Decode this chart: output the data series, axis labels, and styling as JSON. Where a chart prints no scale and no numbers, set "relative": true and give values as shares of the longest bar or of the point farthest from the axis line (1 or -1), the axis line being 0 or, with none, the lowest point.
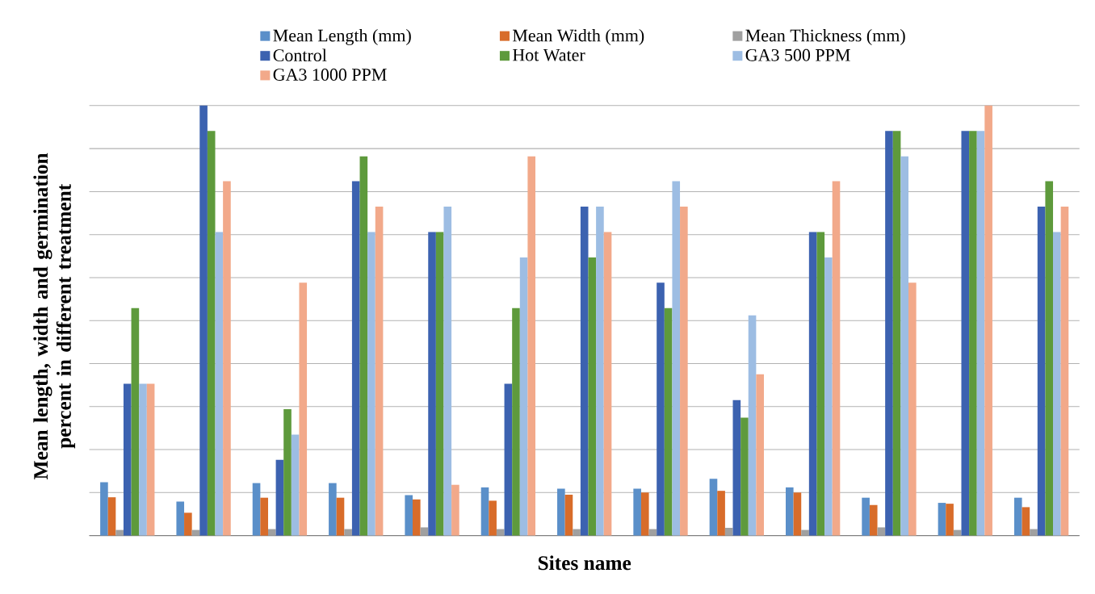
{
  "chart_data": {
    "type": "bar",
    "relative": true,
    "xlabel": "Sites name",
    "ylabel": "Mean length, width and germination percent in different treatment",
    "categories": [
      null,
      null,
      null,
      null,
      null,
      null,
      null,
      null,
      null,
      null,
      null,
      null,
      null
    ],
    "series": [
      {
        "name": "Mean Length (mm)",
        "color": "#5a8fc9",
        "values": [
          0.124,
          0.079,
          0.122,
          0.122,
          0.094,
          0.112,
          0.109,
          0.109,
          0.132,
          0.112,
          0.088,
          0.076,
          0.088
        ]
      },
      {
        "name": "Mean Width (mm)",
        "color": "#d86c2a",
        "values": [
          0.089,
          0.053,
          0.088,
          0.088,
          0.084,
          0.081,
          0.095,
          0.1,
          0.104,
          0.1,
          0.071,
          0.074,
          0.066
        ]
      },
      {
        "name": "Mean Thickness (mm)",
        "color": "#a0a0a0",
        "values": [
          0.013,
          0.013,
          0.015,
          0.015,
          0.019,
          0.015,
          0.015,
          0.015,
          0.018,
          0.013,
          0.019,
          0.013,
          0.015
        ]
      },
      {
        "name": "Control",
        "color": "#3c62b0",
        "values": [
          0.353,
          1,
          0.176,
          0.824,
          0.706,
          0.353,
          0.765,
          0.588,
          0.315,
          0.706,
          0.941,
          0.941,
          0.765
        ]
      },
      {
        "name": "Hot Water",
        "color": "#5e9a3c",
        "values": [
          0.529,
          0.941,
          0.294,
          0.882,
          0.706,
          0.529,
          0.647,
          0.529,
          0.274,
          0.706,
          0.941,
          0.941,
          0.824
        ]
      },
      {
        "name": "GA3 500 PPM",
        "color": "#9dbde3",
        "values": [
          0.353,
          0.706,
          0.235,
          0.706,
          0.765,
          0.647,
          0.765,
          0.824,
          0.512,
          0.647,
          0.882,
          0.941,
          0.706
        ]
      },
      {
        "name": "GA3 1000 PPM",
        "color": "#f2a98a",
        "values": [
          0.353,
          0.824,
          0.588,
          0.765,
          0.118,
          0.882,
          0.706,
          0.765,
          0.375,
          0.824,
          0.588,
          1,
          0.765
        ]
      }
    ],
    "grid": "y",
    "legend": "top"
  }
}
